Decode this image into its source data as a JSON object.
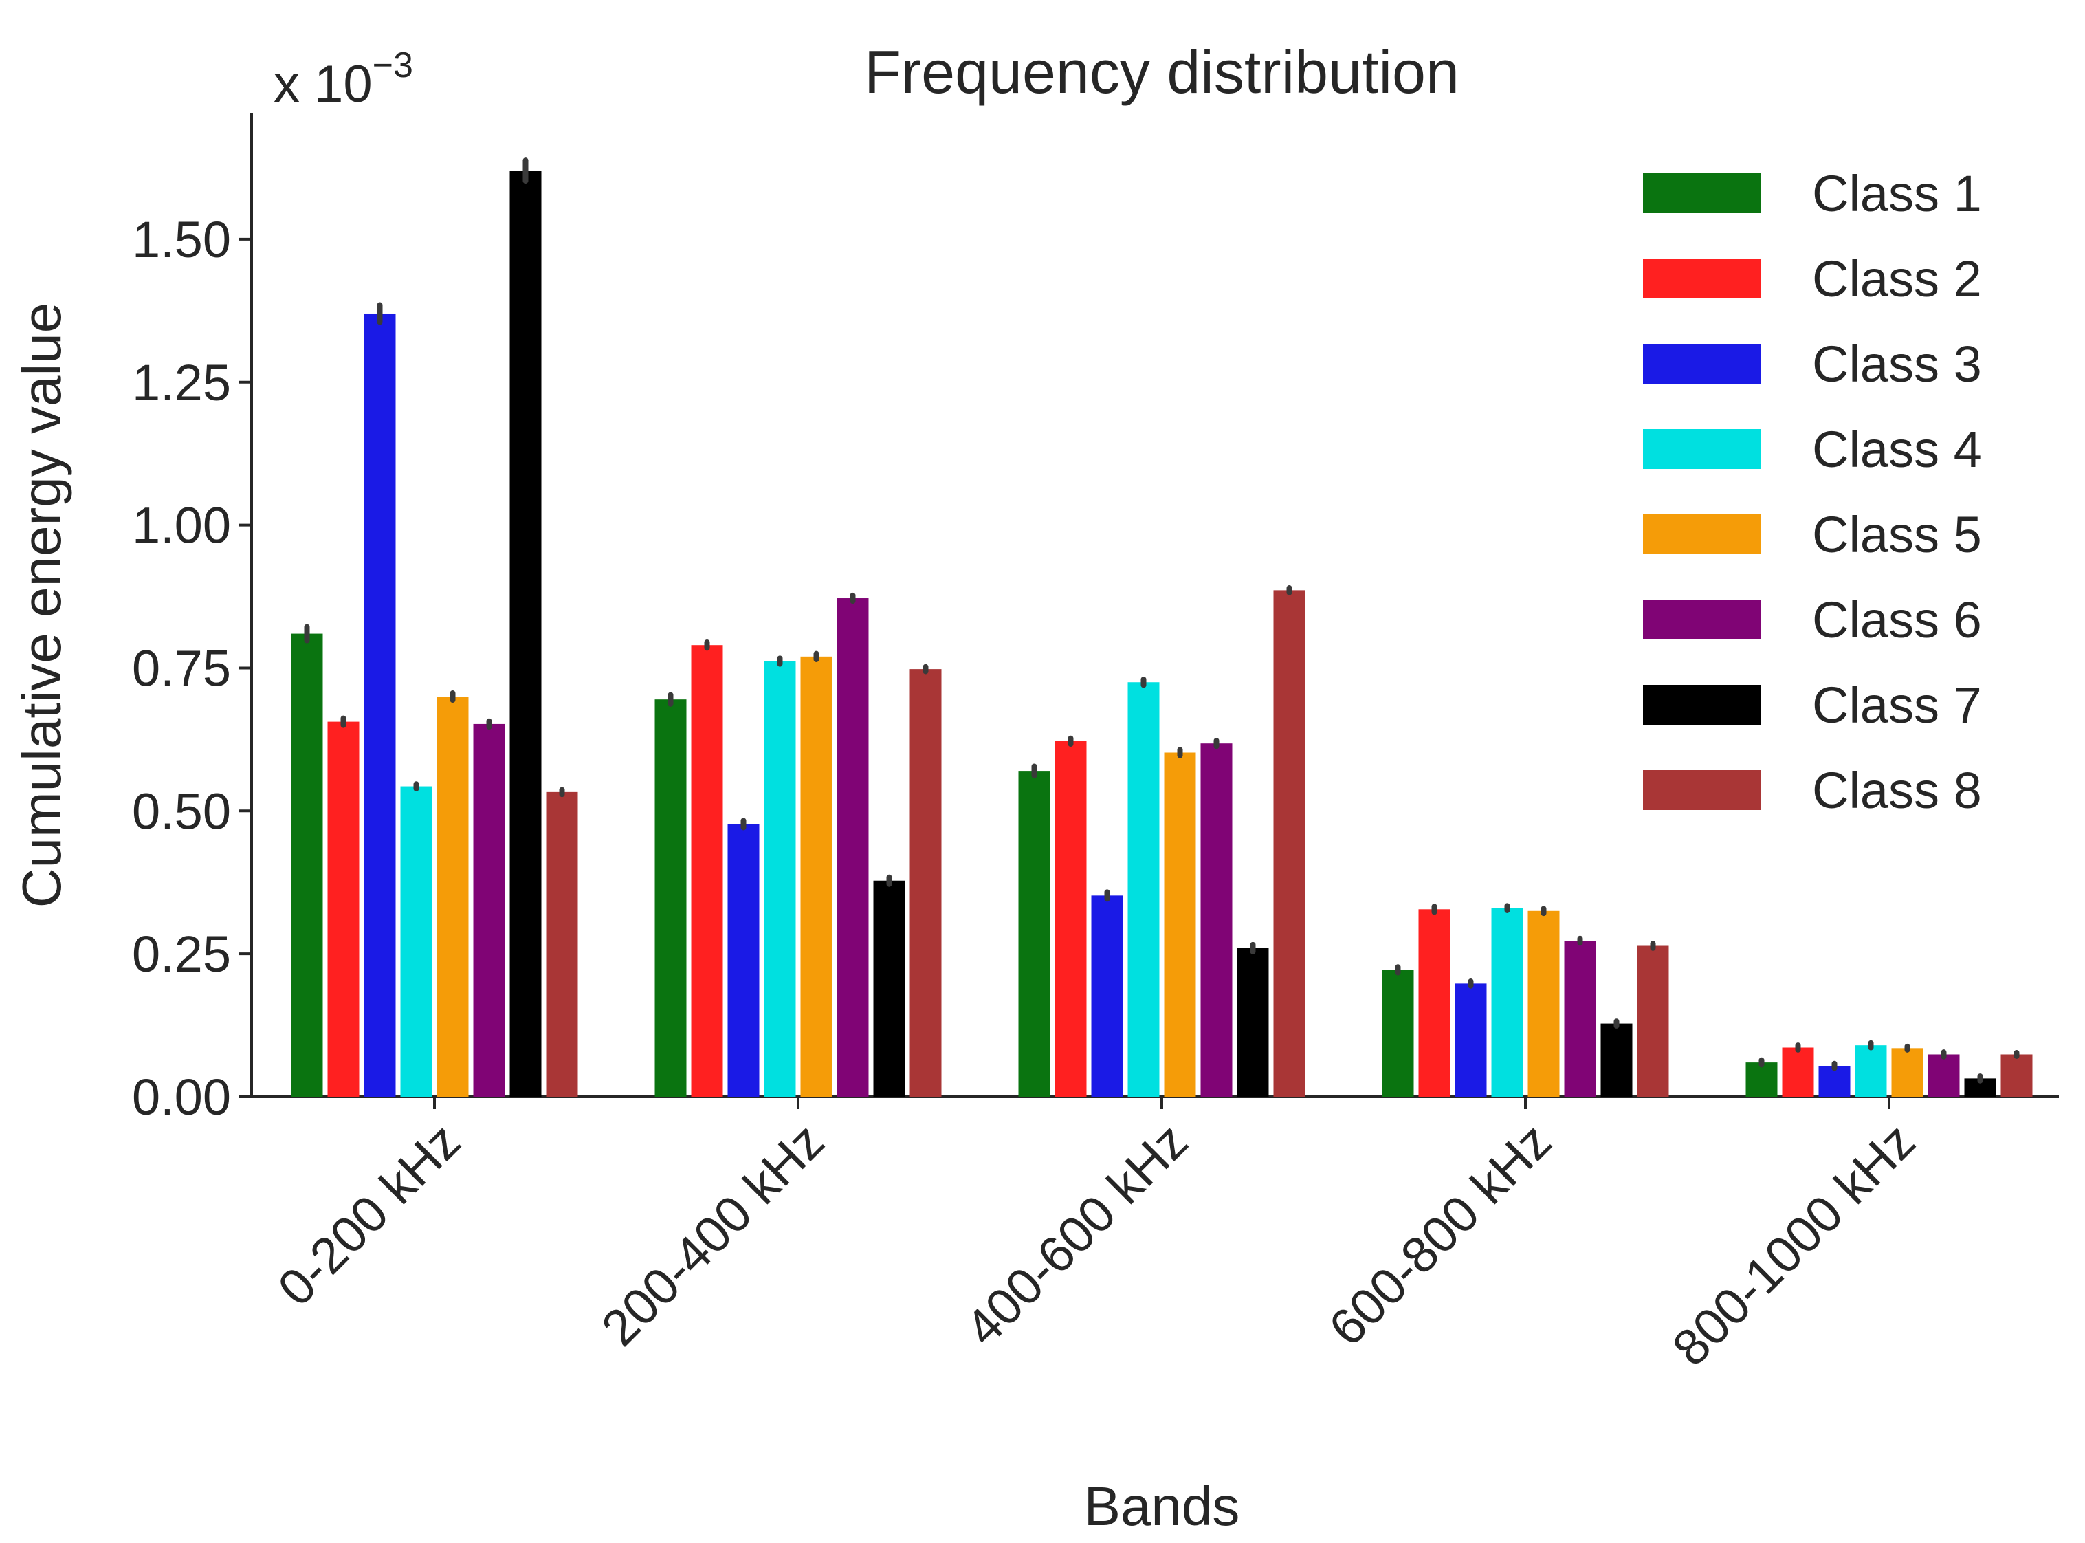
{
  "chart_data": {
    "type": "bar",
    "title": "Frequency distribution",
    "xlabel": "Bands",
    "ylabel": "Cumulative energy value",
    "y_multiplier": {
      "base": "x 10",
      "exponent": "−3"
    },
    "ylim": [
      0,
      1.72
    ],
    "yticks": [
      0.0,
      0.25,
      0.5,
      0.75,
      1.0,
      1.25,
      1.5
    ],
    "ytick_labels": [
      "0.00",
      "0.25",
      "0.50",
      "0.75",
      "1.00",
      "1.25",
      "1.50"
    ],
    "categories": [
      "0-200 kHz",
      "200-400 kHz",
      "400-600 kHz",
      "600-800 kHz",
      "800-1000 kHz"
    ],
    "legend_position": "top-right",
    "series": [
      {
        "name": "Class 1",
        "color": "#0a7410",
        "values": [
          0.81,
          0.695,
          0.57,
          0.222,
          0.06
        ],
        "errors": [
          0.012,
          0.008,
          0.008,
          0.005,
          0.004
        ]
      },
      {
        "name": "Class 2",
        "color": "#ff2020",
        "values": [
          0.656,
          0.79,
          0.622,
          0.328,
          0.086
        ],
        "errors": [
          0.006,
          0.005,
          0.005,
          0.005,
          0.004
        ]
      },
      {
        "name": "Class 3",
        "color": "#1a1ae6",
        "values": [
          1.37,
          0.477,
          0.352,
          0.198,
          0.054
        ],
        "errors": [
          0.015,
          0.006,
          0.006,
          0.004,
          0.004
        ]
      },
      {
        "name": "Class 4",
        "color": "#00e0e0",
        "values": [
          0.543,
          0.762,
          0.725,
          0.33,
          0.09
        ],
        "errors": [
          0.004,
          0.005,
          0.005,
          0.004,
          0.004
        ]
      },
      {
        "name": "Class 5",
        "color": "#f59c08",
        "values": [
          0.7,
          0.77,
          0.602,
          0.325,
          0.085
        ],
        "errors": [
          0.006,
          0.005,
          0.005,
          0.004,
          0.003
        ]
      },
      {
        "name": "Class 6",
        "color": "#800475",
        "values": [
          0.652,
          0.872,
          0.618,
          0.273,
          0.074
        ],
        "errors": [
          0.005,
          0.005,
          0.005,
          0.004,
          0.004
        ]
      },
      {
        "name": "Class 7",
        "color": "#000000",
        "values": [
          1.62,
          0.378,
          0.26,
          0.128,
          0.032
        ],
        "errors": [
          0.018,
          0.006,
          0.006,
          0.004,
          0.004
        ]
      },
      {
        "name": "Class 8",
        "color": "#a93636",
        "values": [
          0.533,
          0.748,
          0.886,
          0.264,
          0.074
        ],
        "errors": [
          0.004,
          0.004,
          0.004,
          0.004,
          0.003
        ]
      }
    ]
  }
}
